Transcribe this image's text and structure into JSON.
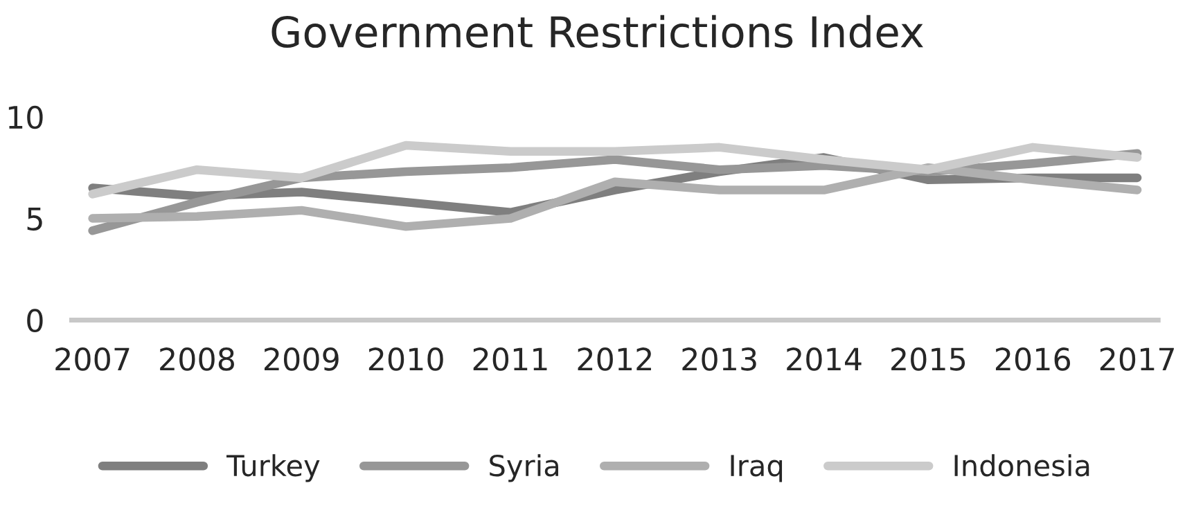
{
  "chart_data": {
    "type": "line",
    "title": "Government Restrictions Index",
    "categories": [
      "2007",
      "2008",
      "2009",
      "2010",
      "2011",
      "2012",
      "2013",
      "2014",
      "2015",
      "2016",
      "2017"
    ],
    "series": [
      {
        "name": "Turkey",
        "color": "#7f7f7f",
        "values": [
          6.5,
          6.1,
          6.3,
          5.8,
          5.3,
          6.4,
          7.3,
          8.0,
          6.9,
          7.0,
          7.0
        ]
      },
      {
        "name": "Syria",
        "color": "#979797",
        "values": [
          4.4,
          5.8,
          7.0,
          7.3,
          7.5,
          7.9,
          7.4,
          7.6,
          7.3,
          7.7,
          8.2
        ]
      },
      {
        "name": "Iraq",
        "color": "#afafaf",
        "values": [
          5.0,
          5.1,
          5.4,
          4.6,
          5.0,
          6.8,
          6.4,
          6.4,
          7.5,
          6.9,
          6.4
        ]
      },
      {
        "name": "Indonesia",
        "color": "#cbcbcb",
        "values": [
          6.2,
          7.4,
          7.0,
          8.6,
          8.3,
          8.3,
          8.5,
          7.9,
          7.4,
          8.5,
          8.0
        ]
      }
    ],
    "ylim": [
      0,
      10
    ],
    "yticks": [
      0,
      5,
      10
    ],
    "legend": "bottom",
    "grid": false
  }
}
